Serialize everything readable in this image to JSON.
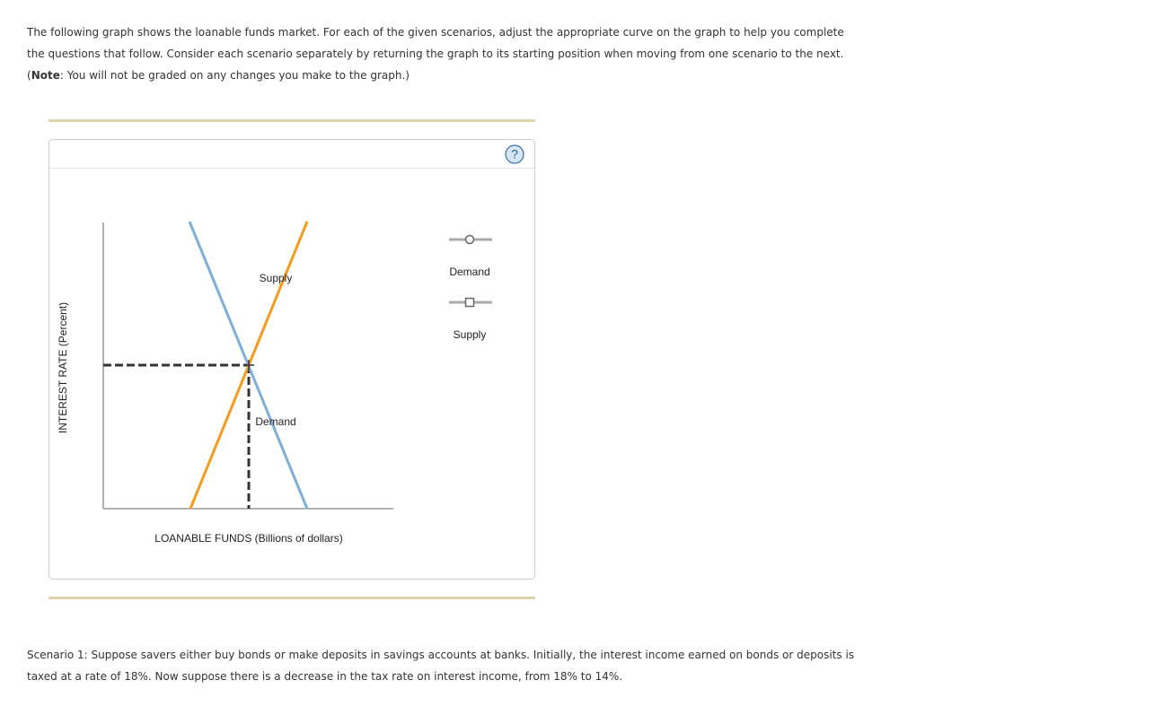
{
  "intro": {
    "text": "The following graph shows the loanable funds market. For each of the given scenarios, adjust the appropriate curve on the graph to help you complete the questions that follow. Consider each scenario separately by returning the graph to its starting position when moving from one scenario to the next.",
    "note_prefix": "(",
    "note_label": "Note",
    "note_text": ": You will not be graded on any changes you make to the graph.)"
  },
  "graph": {
    "help": "?",
    "y_label": "INTEREST RATE (Percent)",
    "x_label": "LOANABLE FUNDS (Billions of dollars)",
    "supply_label": "Supply",
    "demand_label": "Demand",
    "legend": [
      "Demand",
      "Supply"
    ]
  },
  "scenario": {
    "text": "Scenario 1: Suppose savers either buy bonds or make deposits in savings accounts at banks. Initially, the interest income earned on bonds or deposits is taxed at a rate of 18%. Now suppose there is a decrease in the tax rate on interest income, from 18% to 14%."
  }
}
